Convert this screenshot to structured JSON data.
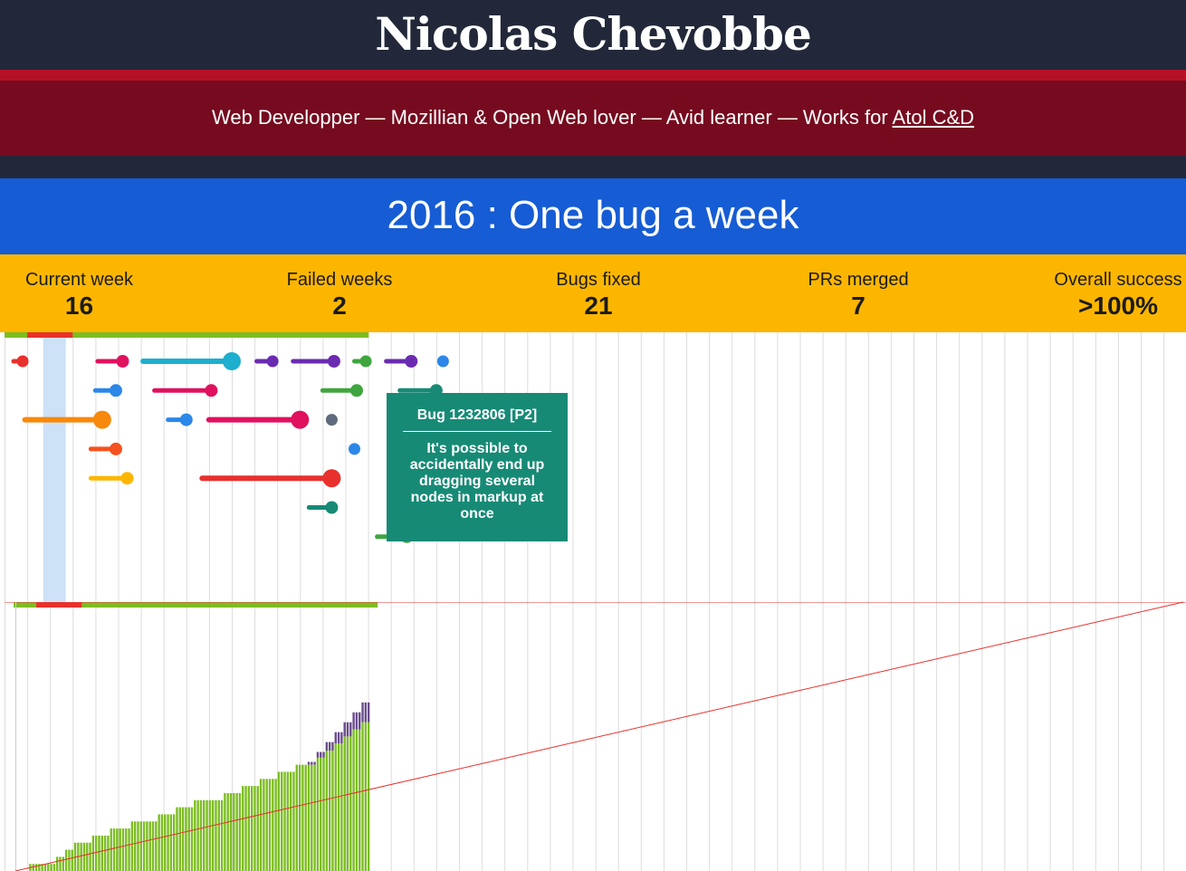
{
  "header": {
    "title": "Nicolas Chevobbe",
    "subtitle_text": "Web Developper — Mozillian & Open Web lover — Avid learner — Works for ",
    "employer_link": "Atol C&D"
  },
  "banner": {
    "title": "2016 : One bug a week"
  },
  "stats": [
    {
      "label": "Current week",
      "value": "16"
    },
    {
      "label": "Failed weeks",
      "value": "2"
    },
    {
      "label": "Bugs fixed",
      "value": "21"
    },
    {
      "label": "PRs merged",
      "value": "7"
    },
    {
      "label": "Overall success",
      "value": ">100%"
    }
  ],
  "tooltip": {
    "title": "Bug 1232806 [P2]",
    "body": "It's possible to accidentally end up dragging several nodes in markup at once"
  },
  "colors": {
    "header_dark": "#222839",
    "header_red": "#760b1f",
    "banner_blue": "#165cd4",
    "stats_yellow": "#fdb600",
    "success_green": "#7cbd22",
    "failed_red": "#e8302c",
    "current_week_highlight": "#cde1f7",
    "merged_purple": "#6a4c8c",
    "target_line": "#e8302c",
    "tooltip_green": "#178a76"
  },
  "chart_data": [
    {
      "type": "timeline",
      "unit": "week",
      "weeks_total": 52,
      "current_week": 16,
      "week_status": [
        "success",
        "fail",
        "fail",
        "success",
        "success",
        "success",
        "success",
        "success",
        "success",
        "success",
        "success",
        "success",
        "success",
        "success",
        "success",
        "success"
      ],
      "bugs": [
        {
          "start": 1.0,
          "end": 1.4,
          "lane": 0,
          "color": "#e8302c"
        },
        {
          "start": 1.5,
          "end": 4.9,
          "lane": 2,
          "color": "#f7890c"
        },
        {
          "start": 4.7,
          "end": 5.8,
          "lane": 0,
          "color": "#e0115f"
        },
        {
          "start": 4.6,
          "end": 5.5,
          "lane": 1,
          "color": "#2b87e8"
        },
        {
          "start": 4.4,
          "end": 5.5,
          "lane": 3,
          "color": "#f5511e"
        },
        {
          "start": 4.4,
          "end": 6.0,
          "lane": 4,
          "color": "#fdb600"
        },
        {
          "start": 6.7,
          "end": 10.6,
          "lane": 0,
          "color": "#1eafce"
        },
        {
          "start": 7.2,
          "end": 9.7,
          "lane": 1,
          "color": "#e0115f"
        },
        {
          "start": 7.8,
          "end": 8.6,
          "lane": 2,
          "color": "#2b87e8"
        },
        {
          "start": 9.6,
          "end": 13.6,
          "lane": 2,
          "color": "#e0115f"
        },
        {
          "start": 9.3,
          "end": 15.0,
          "lane": 4,
          "color": "#e8302c"
        },
        {
          "start": 11.7,
          "end": 12.4,
          "lane": 0,
          "color": "#6a2bb0"
        },
        {
          "start": 13.3,
          "end": 15.1,
          "lane": 0,
          "color": "#6a2bb0"
        },
        {
          "start": 14.6,
          "end": 16.1,
          "lane": 1,
          "color": "#3fa53f"
        },
        {
          "start": 15.0,
          "end": 15.0,
          "lane": 2,
          "color": "#5d6b7c"
        },
        {
          "start": 16.0,
          "end": 16.0,
          "lane": 3,
          "color": "#2b87e8"
        },
        {
          "start": 16.0,
          "end": 16.5,
          "lane": 0,
          "color": "#3fa53f"
        },
        {
          "start": 14.0,
          "end": 15.0,
          "lane": 5,
          "color": "#178a76"
        },
        {
          "start": 17.4,
          "end": 18.5,
          "lane": 0,
          "color": "#6a2bb0"
        },
        {
          "start": 18.0,
          "end": 19.6,
          "lane": 1,
          "color": "#178a76"
        },
        {
          "start": 17.0,
          "end": 18.3,
          "lane": 6,
          "color": "#3fa53f"
        },
        {
          "start": 18.7,
          "end": 18.7,
          "lane": 2,
          "color": "#7cbd22"
        },
        {
          "start": 18.5,
          "end": 18.5,
          "lane": 3,
          "color": "#7cbd22"
        },
        {
          "start": 18.8,
          "end": 19.5,
          "lane": 4,
          "color": "#e0115f"
        },
        {
          "start": 18.6,
          "end": 19.0,
          "lane": 5,
          "color": "#178a76"
        },
        {
          "start": 19.6,
          "end": 19.6,
          "lane": 3,
          "color": "#e8302c"
        },
        {
          "start": 19.9,
          "end": 19.9,
          "lane": 0,
          "color": "#2b87e8"
        },
        {
          "start": 19.9,
          "end": 19.9,
          "lane": 2,
          "color": "#f7890c"
        }
      ]
    },
    {
      "type": "bar",
      "unit": "day",
      "days_total": 364,
      "target_per_week": 1,
      "target_total": 52,
      "y_max": 52,
      "cumulative_bugs_fixed_by_day": [
        0,
        0,
        0,
        0,
        0,
        0,
        0,
        0,
        0,
        0,
        0,
        0,
        0,
        0,
        0,
        0,
        0,
        0,
        0,
        0,
        0,
        0,
        0,
        0,
        0,
        0,
        0,
        0,
        0,
        0,
        0,
        0,
        0,
        0,
        0,
        0,
        0,
        0,
        0,
        0,
        0,
        0,
        0,
        0,
        0,
        0,
        0,
        0,
        0,
        0,
        0,
        0,
        0,
        0,
        0,
        0,
        0,
        0,
        0,
        0,
        0,
        0,
        0,
        0,
        0,
        0,
        0,
        0,
        0,
        0,
        0,
        0,
        0,
        0,
        0,
        0,
        0,
        0,
        0,
        0,
        0,
        0,
        0,
        0,
        0,
        0,
        0,
        0,
        0,
        0,
        0,
        0,
        0,
        0,
        0,
        0,
        0,
        0,
        0,
        0,
        0,
        0,
        0,
        0,
        0,
        0,
        0,
        0,
        0,
        0,
        0,
        0,
        0,
        0,
        0,
        0,
        0,
        0,
        0,
        0,
        0,
        0,
        0,
        0,
        0,
        0,
        0,
        0,
        0,
        0,
        0,
        0,
        0,
        0,
        0,
        0,
        0,
        0,
        0,
        0,
        0,
        0,
        0,
        0,
        0,
        0,
        0,
        0,
        0,
        0,
        0,
        0,
        0,
        0,
        0,
        0,
        0,
        0,
        0,
        0,
        0,
        0,
        0,
        0,
        0,
        0,
        0,
        0,
        0,
        0,
        0,
        0,
        0,
        0,
        0,
        0,
        0,
        0,
        0,
        0,
        0,
        0,
        0,
        0,
        0,
        0,
        0,
        0,
        0,
        0,
        0,
        0,
        0,
        0,
        0,
        0,
        0,
        0,
        0,
        0,
        0,
        0,
        0,
        0,
        0,
        0,
        0,
        0,
        0,
        0,
        0,
        0,
        0,
        0,
        0,
        0,
        0,
        0,
        0,
        0,
        0,
        0,
        0,
        0,
        0,
        0,
        0,
        0,
        0,
        0,
        0,
        0,
        0,
        0,
        0,
        0,
        0,
        0,
        0,
        0,
        0,
        0,
        0,
        0,
        0,
        0,
        0,
        0,
        0,
        0,
        0,
        0,
        0,
        0,
        0,
        0,
        0,
        0,
        0,
        0,
        0,
        0,
        0,
        0,
        0,
        0,
        0,
        0,
        0,
        0,
        0,
        0,
        0,
        0,
        0,
        0,
        0,
        0,
        0,
        0,
        0,
        0,
        0,
        0,
        0,
        0,
        0,
        0,
        0,
        0,
        0,
        0,
        0,
        0,
        0,
        0,
        0,
        0,
        0,
        0,
        0,
        0,
        0,
        0,
        0,
        0,
        0,
        0,
        0,
        0,
        0,
        0,
        0,
        0,
        0,
        0,
        0,
        0,
        0,
        0,
        0,
        0,
        0,
        0,
        0,
        0,
        0,
        0,
        0,
        0,
        0,
        0,
        0,
        0,
        0,
        0,
        0,
        0,
        0,
        0,
        0,
        0,
        0,
        0,
        0,
        0,
        0
      ],
      "cumulative_bugs_fixed": [
        0,
        1,
        1,
        1,
        2,
        3,
        4,
        4,
        5,
        5,
        6,
        6,
        7,
        7,
        7,
        8,
        8,
        9,
        9,
        10,
        10,
        10,
        11,
        11,
        12,
        12,
        13,
        13,
        14,
        14,
        15,
        15,
        16,
        17,
        18,
        19,
        20,
        21
      ],
      "cumulative_prs_merged": [
        0,
        0,
        0,
        0,
        0,
        0,
        0,
        0,
        0,
        0,
        0,
        0,
        0,
        0,
        0,
        0,
        0,
        0,
        0,
        0,
        0,
        0,
        0,
        0,
        0,
        0,
        0,
        0,
        0,
        0,
        0,
        1,
        2,
        3,
        4,
        5,
        6,
        7
      ]
    }
  ]
}
